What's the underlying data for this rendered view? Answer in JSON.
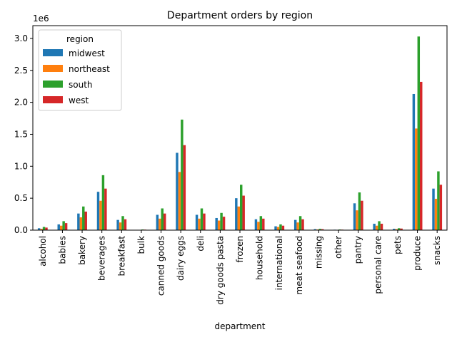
{
  "chart_data": {
    "type": "bar",
    "title": "Department orders by region",
    "xlabel": "department",
    "ylabel": "",
    "y_offset_label": "1e6",
    "y_scale": 1000000,
    "ylim": [
      0,
      3.2
    ],
    "yticks": [
      0.0,
      0.5,
      1.0,
      1.5,
      2.0,
      2.5,
      3.0
    ],
    "ytick_labels": [
      "0.0",
      "0.5",
      "1.0",
      "1.5",
      "2.0",
      "2.5",
      "3.0"
    ],
    "grid": false,
    "legend_title": "region",
    "legend_position": "upper-left",
    "categories": [
      "alcohol",
      "babies",
      "bakery",
      "beverages",
      "breakfast",
      "bulk",
      "canned goods",
      "dairy eggs",
      "deli",
      "dry goods pasta",
      "frozen",
      "household",
      "international",
      "meat seafood",
      "missing",
      "other",
      "pantry",
      "personal care",
      "pets",
      "produce",
      "snacks"
    ],
    "series": [
      {
        "name": "midwest",
        "color": "#1f77b4",
        "values": [
          0.03,
          0.09,
          0.26,
          0.6,
          0.16,
          0.005,
          0.24,
          1.21,
          0.24,
          0.19,
          0.5,
          0.17,
          0.06,
          0.16,
          0.015,
          0.007,
          0.42,
          0.1,
          0.02,
          2.13,
          0.65
        ]
      },
      {
        "name": "northeast",
        "color": "#ff7f0e",
        "values": [
          0.02,
          0.07,
          0.2,
          0.46,
          0.12,
          0.004,
          0.18,
          0.91,
          0.18,
          0.15,
          0.37,
          0.13,
          0.05,
          0.12,
          0.01,
          0.005,
          0.31,
          0.07,
          0.015,
          1.59,
          0.49
        ]
      },
      {
        "name": "south",
        "color": "#2ca02c",
        "values": [
          0.05,
          0.14,
          0.37,
          0.86,
          0.22,
          0.01,
          0.34,
          1.73,
          0.34,
          0.27,
          0.71,
          0.22,
          0.09,
          0.22,
          0.02,
          0.01,
          0.59,
          0.14,
          0.03,
          3.03,
          0.92
        ]
      },
      {
        "name": "west",
        "color": "#d62728",
        "values": [
          0.04,
          0.11,
          0.29,
          0.65,
          0.17,
          0.008,
          0.26,
          1.33,
          0.26,
          0.21,
          0.54,
          0.18,
          0.07,
          0.17,
          0.015,
          0.008,
          0.46,
          0.1,
          0.025,
          2.32,
          0.71
        ]
      }
    ]
  }
}
